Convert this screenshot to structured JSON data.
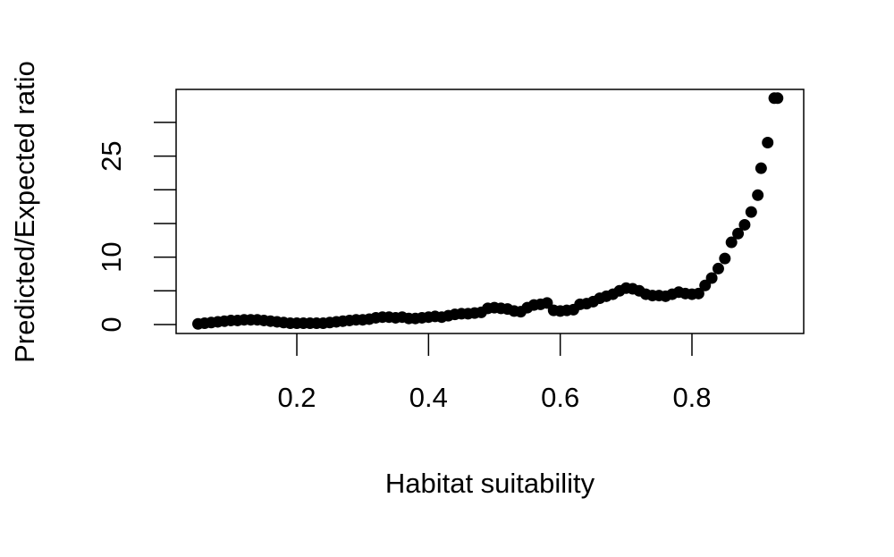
{
  "chart_data": {
    "type": "scatter",
    "x_label": "Habitat suitability",
    "y_label": "Predicted/Expected ratio",
    "color": "#000000",
    "x": [
      0.05,
      0.06,
      0.07,
      0.08,
      0.09,
      0.1,
      0.11,
      0.12,
      0.13,
      0.14,
      0.15,
      0.16,
      0.17,
      0.18,
      0.19,
      0.2,
      0.21,
      0.22,
      0.23,
      0.24,
      0.25,
      0.26,
      0.27,
      0.28,
      0.29,
      0.3,
      0.31,
      0.32,
      0.33,
      0.34,
      0.35,
      0.36,
      0.37,
      0.38,
      0.39,
      0.4,
      0.41,
      0.42,
      0.43,
      0.44,
      0.45,
      0.46,
      0.47,
      0.48,
      0.49,
      0.5,
      0.51,
      0.52,
      0.53,
      0.54,
      0.55,
      0.56,
      0.57,
      0.58,
      0.59,
      0.6,
      0.61,
      0.62,
      0.63,
      0.64,
      0.65,
      0.66,
      0.67,
      0.68,
      0.69,
      0.7,
      0.71,
      0.72,
      0.73,
      0.74,
      0.75,
      0.76,
      0.77,
      0.78,
      0.79,
      0.8,
      0.81,
      0.82,
      0.83,
      0.84,
      0.85,
      0.86,
      0.87,
      0.88,
      0.89,
      0.9,
      0.905,
      0.915,
      0.925,
      0.93
    ],
    "values": [
      0.1,
      0.2,
      0.3,
      0.4,
      0.5,
      0.6,
      0.6,
      0.7,
      0.7,
      0.7,
      0.6,
      0.5,
      0.4,
      0.3,
      0.2,
      0.2,
      0.2,
      0.2,
      0.2,
      0.2,
      0.3,
      0.4,
      0.5,
      0.6,
      0.7,
      0.7,
      0.8,
      1.0,
      1.1,
      1.1,
      1.0,
      1.1,
      0.9,
      0.9,
      1.0,
      1.1,
      1.2,
      1.1,
      1.3,
      1.5,
      1.6,
      1.6,
      1.7,
      1.8,
      2.4,
      2.5,
      2.4,
      2.3,
      2.0,
      1.9,
      2.5,
      2.9,
      3.0,
      3.2,
      2.1,
      2.0,
      2.1,
      2.2,
      3.0,
      3.1,
      3.4,
      3.9,
      4.2,
      4.5,
      5.0,
      5.4,
      5.3,
      5.0,
      4.5,
      4.3,
      4.3,
      4.2,
      4.5,
      4.8,
      4.6,
      4.5,
      4.6,
      5.8,
      6.9,
      8.3,
      9.8,
      12.2,
      13.5,
      14.8,
      16.7,
      19.2,
      23.2,
      27.0,
      33.6,
      33.6
    ],
    "xlim": [
      0.0167,
      0.9697
    ],
    "ylim": [
      -1.33,
      34.9
    ],
    "xticks": [
      0.2,
      0.4,
      0.6,
      0.8
    ],
    "yticks": [
      0,
      10,
      25
    ],
    "yminor_ticks": [
      5,
      15,
      20,
      30
    ]
  }
}
